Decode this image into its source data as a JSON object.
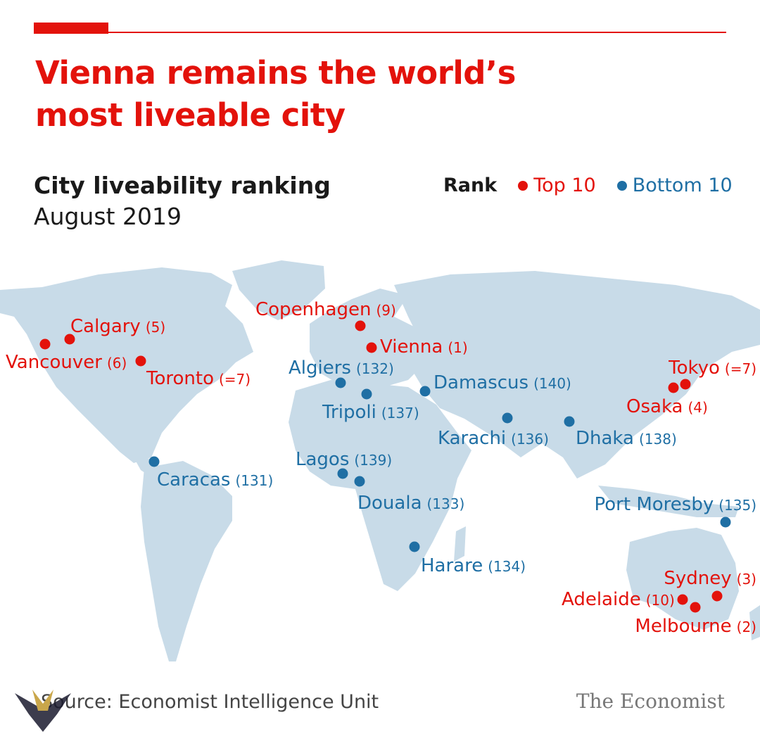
{
  "header": {
    "title": "Vienna remains the world’s most liveable city",
    "subtitle": "City liveability ranking",
    "date": "August 2019"
  },
  "legend": {
    "label": "Rank",
    "top_label": "Top 10",
    "bottom_label": "Bottom 10"
  },
  "colors": {
    "top": "#e3120b",
    "bottom": "#1f6fa4",
    "land": "#c8dbe8"
  },
  "cities": [
    {
      "name": "Vienna",
      "rank": "(1)",
      "group": "top"
    },
    {
      "name": "Melbourne",
      "rank": "(2)",
      "group": "top"
    },
    {
      "name": "Sydney",
      "rank": "(3)",
      "group": "top"
    },
    {
      "name": "Osaka",
      "rank": "(4)",
      "group": "top"
    },
    {
      "name": "Calgary",
      "rank": "(5)",
      "group": "top"
    },
    {
      "name": "Vancouver",
      "rank": "(6)",
      "group": "top"
    },
    {
      "name": "Toronto",
      "rank": "(=7)",
      "group": "top"
    },
    {
      "name": "Tokyo",
      "rank": "(=7)",
      "group": "top"
    },
    {
      "name": "Copenhagen",
      "rank": "(9)",
      "group": "top"
    },
    {
      "name": "Adelaide",
      "rank": "(10)",
      "group": "top"
    },
    {
      "name": "Caracas",
      "rank": "(131)",
      "group": "bottom"
    },
    {
      "name": "Algiers",
      "rank": "(132)",
      "group": "bottom"
    },
    {
      "name": "Douala",
      "rank": "(133)",
      "group": "bottom"
    },
    {
      "name": "Harare",
      "rank": "(134)",
      "group": "bottom"
    },
    {
      "name": "Port Moresby",
      "rank": "(135)",
      "group": "bottom"
    },
    {
      "name": "Karachi",
      "rank": "(136)",
      "group": "bottom"
    },
    {
      "name": "Tripoli",
      "rank": "(137)",
      "group": "bottom"
    },
    {
      "name": "Dhaka",
      "rank": "(138)",
      "group": "bottom"
    },
    {
      "name": "Lagos",
      "rank": "(139)",
      "group": "bottom"
    },
    {
      "name": "Damascus",
      "rank": "(140)",
      "group": "bottom"
    }
  ],
  "footer": {
    "source": "Source: Economist Intelligence Unit",
    "brand": "The Economist"
  }
}
